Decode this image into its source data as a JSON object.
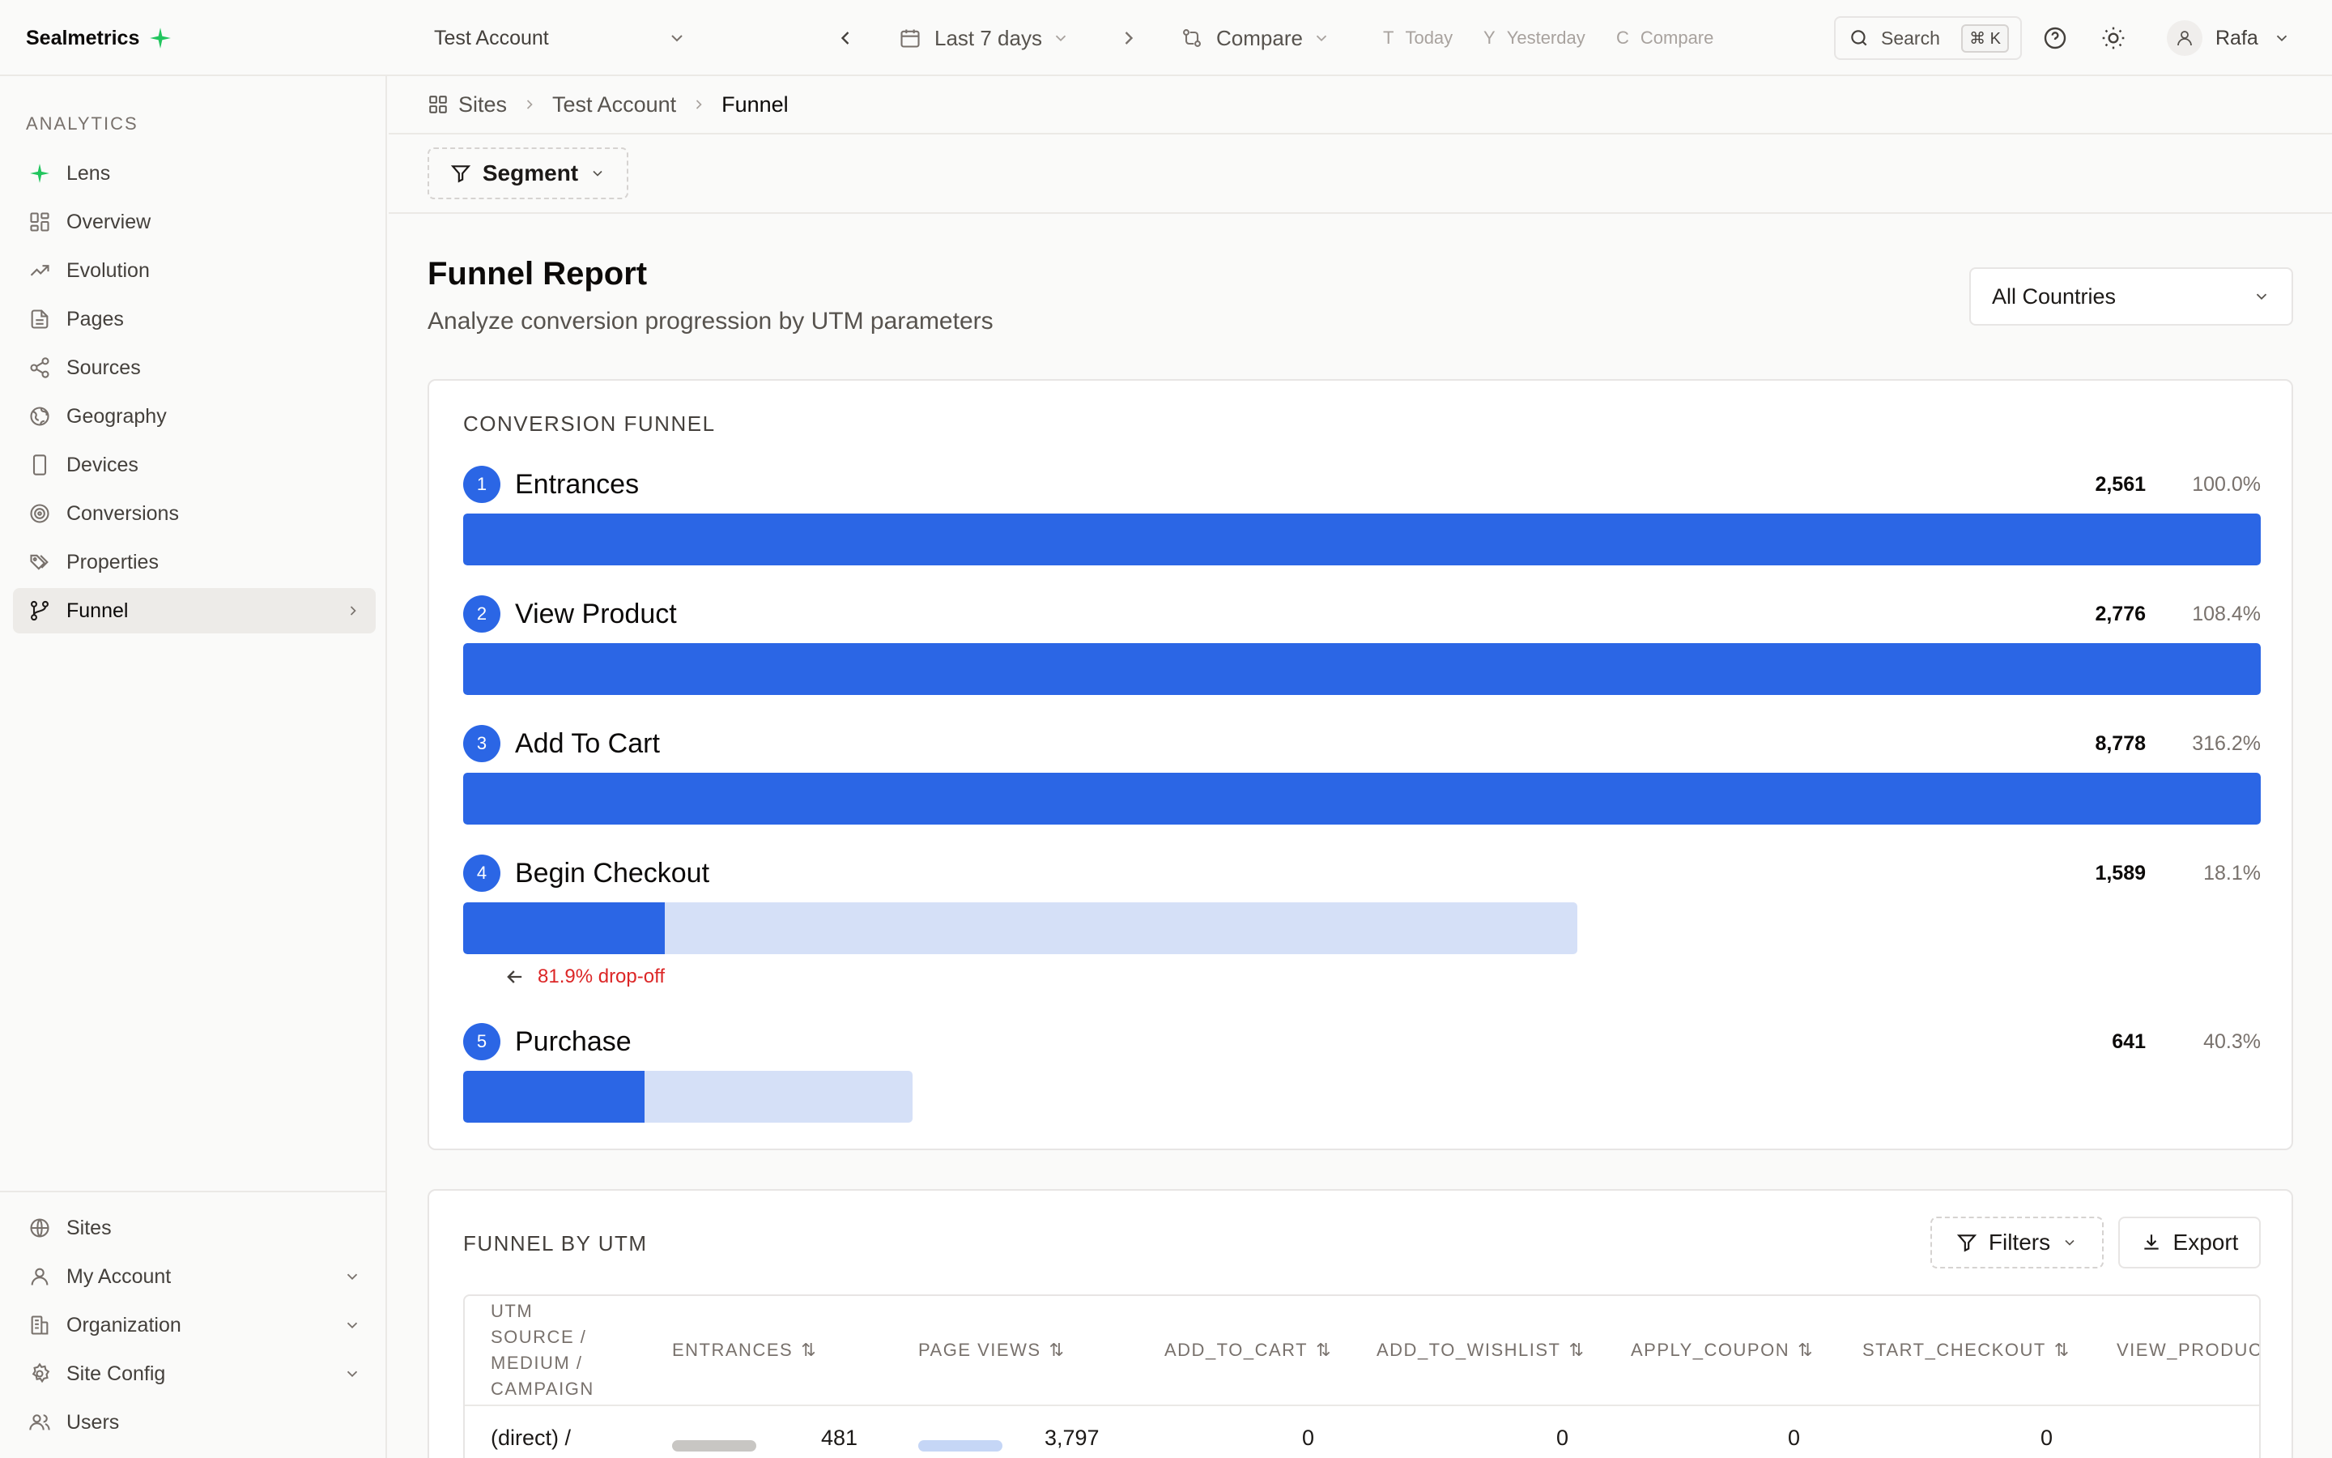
{
  "app": {
    "name": "Sealmetrics"
  },
  "topbar": {
    "account": "Test Account",
    "date_range": "Last 7 days",
    "compare": "Compare",
    "shortcuts": [
      {
        "key": "T",
        "label": "Today"
      },
      {
        "key": "Y",
        "label": "Yesterday"
      },
      {
        "key": "C",
        "label": "Compare"
      }
    ],
    "search": {
      "label": "Search",
      "kbd": "⌘ K"
    },
    "user": "Rafa"
  },
  "sidebar": {
    "section": "ANALYTICS",
    "items": [
      {
        "label": "Lens",
        "icon": "sparkle-icon"
      },
      {
        "label": "Overview",
        "icon": "dashboard-icon"
      },
      {
        "label": "Evolution",
        "icon": "trending-up-icon"
      },
      {
        "label": "Pages",
        "icon": "file-icon"
      },
      {
        "label": "Sources",
        "icon": "share-icon"
      },
      {
        "label": "Geography",
        "icon": "globe-icon"
      },
      {
        "label": "Devices",
        "icon": "smartphone-icon"
      },
      {
        "label": "Conversions",
        "icon": "target-icon"
      },
      {
        "label": "Properties",
        "icon": "tags-icon"
      },
      {
        "label": "Funnel",
        "icon": "git-branch-icon",
        "active": true
      }
    ],
    "bottom": [
      {
        "label": "Sites",
        "icon": "globe-icon"
      },
      {
        "label": "My Account",
        "icon": "user-icon"
      },
      {
        "label": "Organization",
        "icon": "building-icon"
      },
      {
        "label": "Site Config",
        "icon": "gear-icon"
      },
      {
        "label": "Users",
        "icon": "users-icon"
      }
    ]
  },
  "breadcrumb": [
    "Sites",
    "Test Account",
    "Funnel"
  ],
  "segment": "Segment",
  "page": {
    "title": "Funnel Report",
    "subtitle": "Analyze conversion progression by UTM parameters",
    "country_filter": "All Countries"
  },
  "funnel": {
    "title": "CONVERSION FUNNEL",
    "colors": {
      "fill": "#2b66e5",
      "track": "#d5e0f7",
      "dropoff": "#dc2626"
    },
    "steps": [
      {
        "num": "1",
        "name": "Entrances",
        "count": "2,561",
        "pct": "100.0%",
        "bar_width_fraction": 1.0,
        "fill_fraction": 1.0
      },
      {
        "num": "2",
        "name": "View Product",
        "count": "2,776",
        "pct": "108.4%",
        "bar_width_fraction": 1.0,
        "fill_fraction": 1.0
      },
      {
        "num": "3",
        "name": "Add To Cart",
        "count": "8,778",
        "pct": "316.2%",
        "bar_width_fraction": 1.0,
        "fill_fraction": 1.0
      },
      {
        "num": "4",
        "name": "Begin Checkout",
        "count": "1,589",
        "pct": "18.1%",
        "bar_width_fraction": 0.62,
        "fill_fraction": 0.181,
        "dropoff": "81.9% drop-off"
      },
      {
        "num": "5",
        "name": "Purchase",
        "count": "641",
        "pct": "40.3%",
        "bar_width_fraction": 0.25,
        "fill_fraction": 0.403
      }
    ]
  },
  "utm": {
    "title": "FUNNEL BY UTM",
    "filters": "Filters",
    "export": "Export",
    "columns": [
      "UTM SOURCE / MEDIUM / CAMPAIGN",
      "ENTRANCES",
      "PAGE VIEWS",
      "ADD_TO_CART",
      "ADD_TO_WISHLIST",
      "APPLY_COUPON",
      "START_CHECKOUT",
      "VIEW_PRODUCT"
    ],
    "rows": [
      {
        "source": "(direct) /",
        "entrances": "481",
        "page_views": "3,797",
        "add_to_cart": "0",
        "add_to_wishlist": "0",
        "apply_coupon": "0",
        "start_checkout": "0"
      }
    ]
  }
}
